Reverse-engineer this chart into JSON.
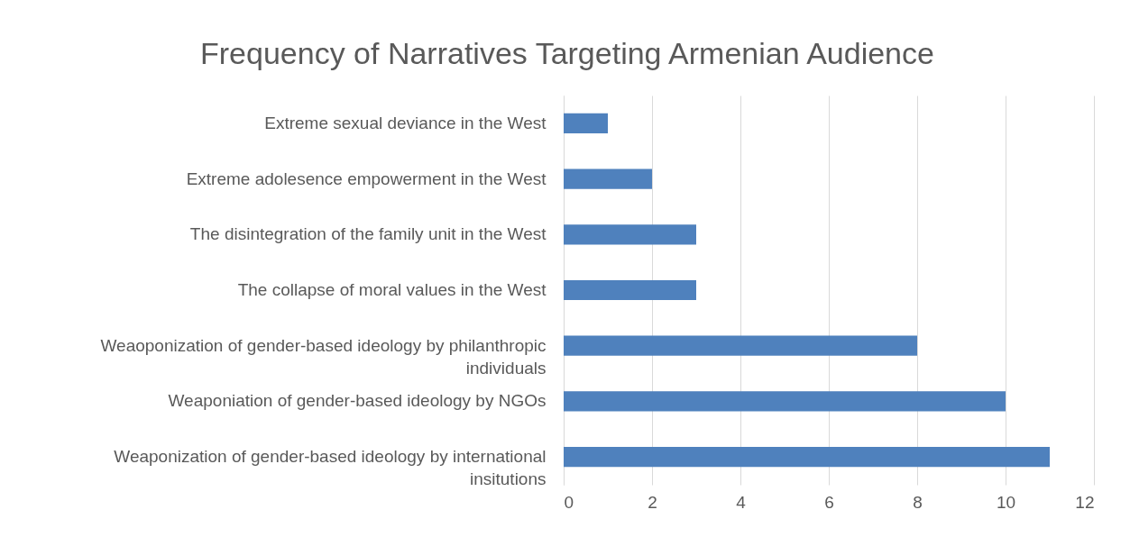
{
  "chart_data": {
    "type": "bar",
    "orientation": "horizontal",
    "title": "Frequency of Narratives Targeting Armenian Audience",
    "categories": [
      "Extreme sexual deviance in the West",
      "Extreme adolesence empowerment in the West",
      "The disintegration of the family unit in the West",
      "The collapse of moral values in the West",
      "Weaoponization of gender-based ideology by philanthropic individuals",
      "Weaponiation of gender-based ideology by NGOs",
      "Weaponization of gender-based ideology by international insitutions"
    ],
    "values": [
      1,
      2,
      3,
      3,
      8,
      10,
      11
    ],
    "color": "#4f81bd",
    "xlim": [
      0,
      12
    ],
    "xticks": [
      0,
      2,
      4,
      6,
      8,
      10,
      12
    ],
    "grid": "x"
  }
}
